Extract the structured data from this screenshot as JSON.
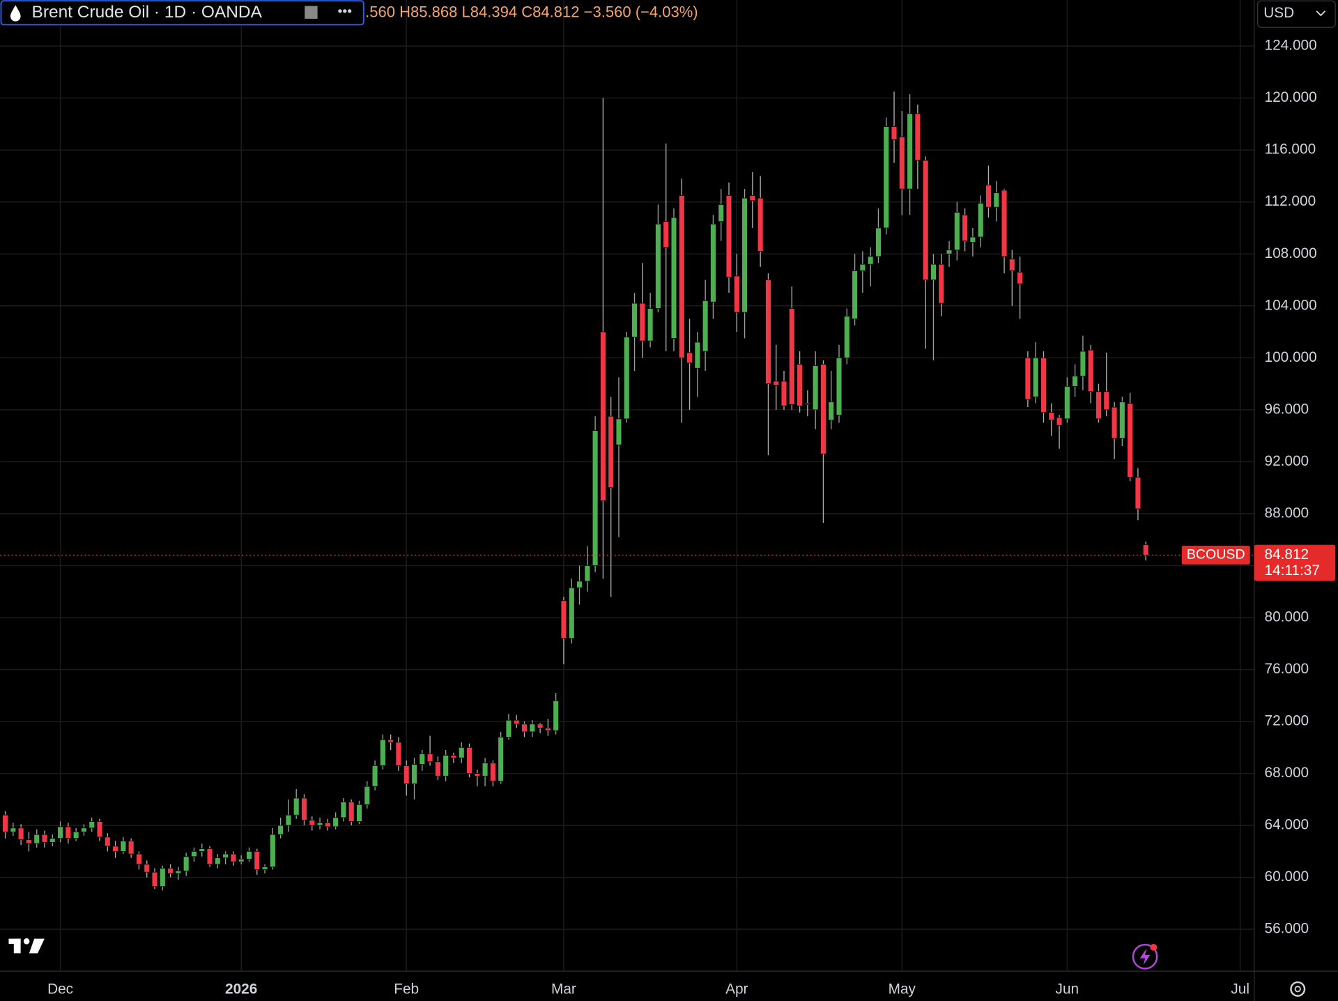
{
  "chart_data": {
    "type": "candlestick",
    "title": "Brent Crude Oil · 1D · OANDA",
    "legend": {
      "open": ".560",
      "high": "H85.868",
      "low": "L84.394",
      "close": "C84.812",
      "change": "−3.560 (−4.03%)"
    },
    "currency": "USD",
    "symbol": "BCOUSD",
    "countdown": "14:11:37",
    "up_color": "#4caf50",
    "down_color": "#f23645",
    "grid": true,
    "open": [
      64.8,
      63.5,
      63.8,
      62.9,
      62.6,
      63.3,
      62.7,
      63.0,
      63.9,
      63.0,
      63.5,
      63.8,
      64.3,
      63.1,
      62.4,
      62.0,
      62.8,
      61.8,
      61.0,
      60.4,
      59.3,
      60.7,
      60.3,
      60.5,
      61.6,
      62.0,
      62.2,
      61.0,
      61.5,
      61.8,
      61.2,
      61.4,
      62.0,
      60.6,
      60.8,
      63.3,
      64.0,
      64.8,
      66.1,
      64.4,
      64.0,
      64.2,
      63.9,
      64.6,
      65.8,
      64.3,
      65.6,
      67.0,
      68.6,
      70.6,
      70.4,
      68.6,
      67.2,
      68.7,
      69.5,
      68.9,
      67.8,
      69.4,
      69.2,
      70.0,
      68.0,
      67.8,
      68.8,
      67.4,
      70.8,
      72.1,
      71.8,
      71.2,
      71.8,
      71.5,
      71.3,
      81.3,
      78.4,
      82.3,
      82.8,
      84.0,
      102.0,
      95.5,
      93.3,
      95.3,
      101.6,
      104.2,
      101.3,
      103.8,
      110.5,
      101.5,
      112.5,
      100.4,
      99.2,
      100.5,
      104.3,
      110.5,
      112.5,
      106.3,
      103.5,
      112.5,
      112.3,
      106.0,
      98.2,
      98.2,
      103.8,
      99.5,
      96.5,
      96.0,
      99.5,
      95.2,
      95.6,
      100.0,
      103.0,
      106.7,
      107.2,
      107.8,
      110.0,
      117.8,
      117.0,
      113.0,
      118.8,
      115.2,
      106.0,
      107.2,
      108.0,
      108.3,
      111.0,
      108.9,
      109.3,
      113.3,
      111.6,
      112.9,
      107.6,
      106.6,
      100.0,
      97.0,
      100.0,
      95.8,
      95.4,
      95.3,
      97.8,
      98.6,
      100.6,
      97.4,
      97.4,
      96.2,
      93.8,
      96.5,
      90.8,
      85.6
    ],
    "high": [
      65.1,
      64.2,
      64.1,
      63.5,
      63.7,
      63.6,
      63.3,
      64.3,
      64.2,
      63.8,
      64.1,
      64.6,
      64.5,
      63.4,
      62.8,
      63.1,
      63.0,
      62.0,
      61.3,
      60.7,
      60.9,
      61.0,
      60.8,
      61.9,
      62.3,
      62.6,
      62.4,
      61.8,
      62.0,
      62.0,
      61.7,
      62.3,
      62.2,
      61.0,
      63.8,
      64.6,
      66.0,
      66.8,
      66.4,
      64.7,
      64.6,
      64.5,
      65.0,
      66.1,
      66.0,
      65.9,
      67.4,
      69.0,
      71.0,
      71.0,
      70.8,
      69.0,
      69.2,
      69.8,
      70.9,
      69.3,
      69.8,
      69.6,
      70.4,
      70.3,
      68.3,
      69.2,
      69.0,
      71.2,
      72.6,
      72.5,
      72.0,
      72.1,
      71.9,
      72.2,
      74.2,
      81.6,
      83.0,
      84.0,
      85.5,
      95.5,
      120.0,
      97.0,
      98.5,
      102.0,
      105.0,
      107.3,
      105.0,
      111.8,
      116.5,
      111.5,
      113.8,
      103.0,
      102.0,
      106.0,
      111.0,
      113.0,
      113.5,
      108.0,
      113.0,
      114.3,
      114.0,
      106.5,
      101.0,
      99.0,
      105.5,
      100.5,
      97.5,
      100.5,
      99.8,
      99.0,
      101.0,
      103.8,
      108.0,
      108.2,
      108.5,
      111.5,
      118.5,
      120.5,
      119.0,
      120.3,
      119.5,
      115.5,
      108.0,
      108.0,
      109.0,
      112.0,
      111.5,
      110.0,
      112.5,
      114.8,
      113.6,
      113.0,
      108.3,
      107.8,
      100.5,
      101.2,
      100.5,
      96.5,
      95.6,
      98.5,
      99.5,
      101.7,
      101.0,
      98.0,
      100.4,
      96.6,
      97.0,
      97.3,
      91.5,
      85.868
    ],
    "low": [
      63.0,
      63.2,
      62.5,
      62.0,
      62.3,
      62.3,
      62.4,
      62.7,
      62.6,
      62.8,
      63.2,
      63.5,
      62.8,
      62.0,
      61.5,
      61.8,
      61.5,
      60.6,
      60.0,
      59.1,
      59.0,
      60.0,
      59.8,
      60.1,
      61.2,
      61.6,
      60.8,
      60.7,
      61.0,
      60.9,
      61.0,
      61.2,
      60.2,
      60.3,
      60.6,
      63.0,
      63.5,
      64.5,
      64.0,
      63.6,
      63.7,
      63.6,
      63.7,
      64.3,
      64.0,
      64.1,
      65.3,
      66.7,
      68.3,
      69.8,
      68.2,
      66.3,
      66.0,
      68.2,
      68.6,
      67.5,
      67.4,
      68.8,
      68.8,
      67.7,
      67.0,
      67.0,
      67.0,
      67.2,
      70.6,
      71.5,
      70.8,
      70.8,
      71.1,
      70.9,
      71.0,
      76.4,
      78.0,
      81.0,
      82.0,
      83.5,
      83.0,
      81.6,
      86.2,
      95.0,
      99.0,
      100.0,
      100.8,
      103.5,
      100.5,
      100.5,
      95.0,
      96.0,
      97.0,
      99.0,
      103.0,
      109.0,
      105.0,
      102.0,
      101.5,
      110.0,
      107.0,
      92.5,
      96.0,
      96.0,
      96.0,
      95.8,
      95.5,
      94.5,
      87.3,
      94.5,
      95.0,
      99.5,
      102.5,
      105.0,
      105.5,
      107.3,
      109.5,
      115.0,
      111.0,
      111.0,
      113.0,
      100.7,
      99.8,
      103.2,
      107.0,
      107.5,
      108.2,
      107.8,
      108.5,
      110.8,
      110.5,
      106.5,
      104.0,
      103.0,
      96.2,
      96.5,
      95.0,
      94.0,
      93.0,
      95.0,
      97.0,
      97.5,
      96.5,
      95.0,
      95.5,
      92.2,
      93.2,
      90.5,
      87.5,
      84.394
    ],
    "close": [
      63.5,
      63.8,
      62.9,
      62.6,
      63.3,
      62.7,
      63.0,
      63.9,
      63.0,
      63.5,
      63.8,
      64.3,
      63.1,
      62.4,
      62.0,
      62.8,
      61.8,
      61.0,
      60.4,
      59.3,
      60.7,
      60.3,
      60.5,
      61.6,
      62.0,
      62.2,
      61.0,
      61.5,
      61.8,
      61.2,
      61.4,
      62.0,
      60.6,
      60.8,
      63.3,
      64.0,
      64.8,
      66.1,
      64.4,
      64.0,
      64.2,
      63.9,
      64.6,
      65.8,
      64.3,
      65.6,
      67.0,
      68.6,
      70.6,
      70.4,
      68.6,
      67.2,
      68.7,
      69.5,
      68.9,
      67.8,
      69.4,
      69.2,
      70.0,
      68.0,
      67.8,
      68.8,
      67.4,
      70.8,
      72.1,
      71.8,
      71.2,
      71.8,
      71.5,
      71.3,
      73.6,
      78.4,
      82.3,
      82.8,
      84.0,
      94.4,
      89.0,
      90.0,
      95.3,
      101.6,
      104.2,
      101.3,
      103.8,
      110.3,
      108.5,
      110.8,
      100.0,
      99.6,
      101.2,
      104.4,
      110.3,
      111.8,
      106.2,
      103.5,
      112.3,
      112.1,
      108.2,
      98.0,
      97.9,
      96.3,
      96.4,
      96.3,
      96.4,
      99.4,
      92.6,
      96.6,
      100.0,
      103.2,
      106.7,
      107.2,
      107.8,
      110.0,
      117.8,
      116.8,
      113.0,
      118.8,
      115.2,
      106.0,
      107.2,
      104.2,
      108.3,
      111.2,
      109.0,
      109.3,
      111.9,
      111.6,
      112.7,
      107.8,
      106.7,
      105.7,
      96.8,
      100.0,
      95.8,
      95.2,
      94.8,
      97.8,
      98.6,
      100.5,
      97.4,
      95.3,
      96.0,
      93.8,
      96.6,
      90.8,
      88.372,
      84.812
    ],
    "xticks": [
      {
        "value": 7,
        "label": "Dec"
      },
      {
        "value": 30,
        "label": "2026"
      },
      {
        "value": 51,
        "label": "Feb"
      },
      {
        "value": 71,
        "label": "Mar"
      },
      {
        "value": 93,
        "label": "Apr"
      },
      {
        "value": 114,
        "label": "May"
      },
      {
        "value": 135,
        "label": "Jun"
      },
      {
        "value": 157,
        "label": "Jul"
      }
    ],
    "ylim": [
      52.78,
      127.55
    ],
    "yticks": [
      {
        "value": 56,
        "label": "56.000"
      },
      {
        "value": 60,
        "label": "60.000"
      },
      {
        "value": 64,
        "label": "64.000"
      },
      {
        "value": 68,
        "label": "68.000"
      },
      {
        "value": 72,
        "label": "72.000"
      },
      {
        "value": 76,
        "label": "76.000"
      },
      {
        "value": 80,
        "label": "80.000"
      },
      {
        "value": 84,
        "label": "84.000"
      },
      {
        "value": 88,
        "label": "88.000"
      },
      {
        "value": 92,
        "label": "92.000"
      },
      {
        "value": 96,
        "label": "96.000"
      },
      {
        "value": 100,
        "label": "100.000"
      },
      {
        "value": 104,
        "label": "104.000"
      },
      {
        "value": 108,
        "label": "108.000"
      },
      {
        "value": 112,
        "label": "112.000"
      },
      {
        "value": 116,
        "label": "116.000"
      },
      {
        "value": 120,
        "label": "120.000"
      },
      {
        "value": 124,
        "label": "124.000"
      }
    ]
  }
}
